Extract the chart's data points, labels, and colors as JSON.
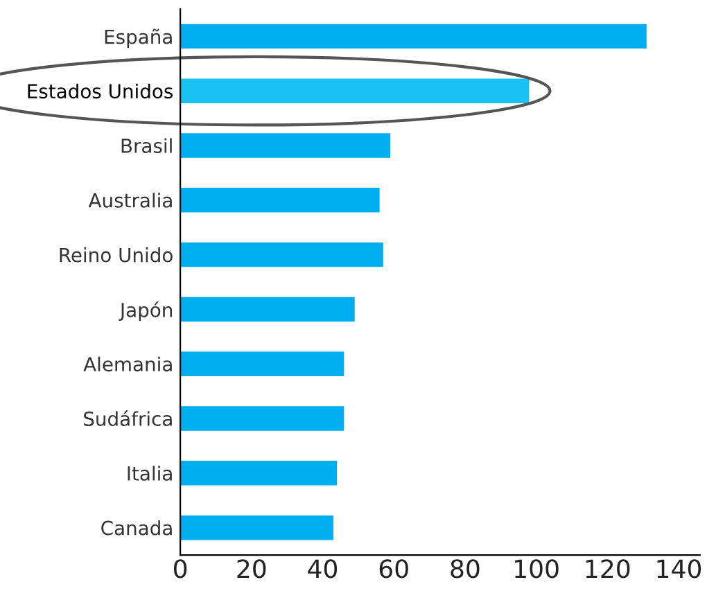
{
  "chart_data": {
    "type": "bar",
    "orientation": "horizontal",
    "categories": [
      "España",
      "Estados Unidos",
      "Brasil",
      "Australia",
      "Reino Unido",
      "Japón",
      "Alemania",
      "Sudáfrica",
      "Italia",
      "Canada"
    ],
    "values": [
      131,
      98,
      59,
      56,
      57,
      49,
      46,
      46,
      44,
      43
    ],
    "colors": [
      "#00aeef",
      "#19c2f2",
      "#00aeef",
      "#00aeef",
      "#00aeef",
      "#00aeef",
      "#00aeef",
      "#00aeef",
      "#00aeef",
      "#00aeef"
    ],
    "xlim": [
      0,
      146
    ],
    "xticks": [
      0,
      20,
      40,
      60,
      80,
      100,
      120,
      140
    ],
    "grid": false
  }
}
